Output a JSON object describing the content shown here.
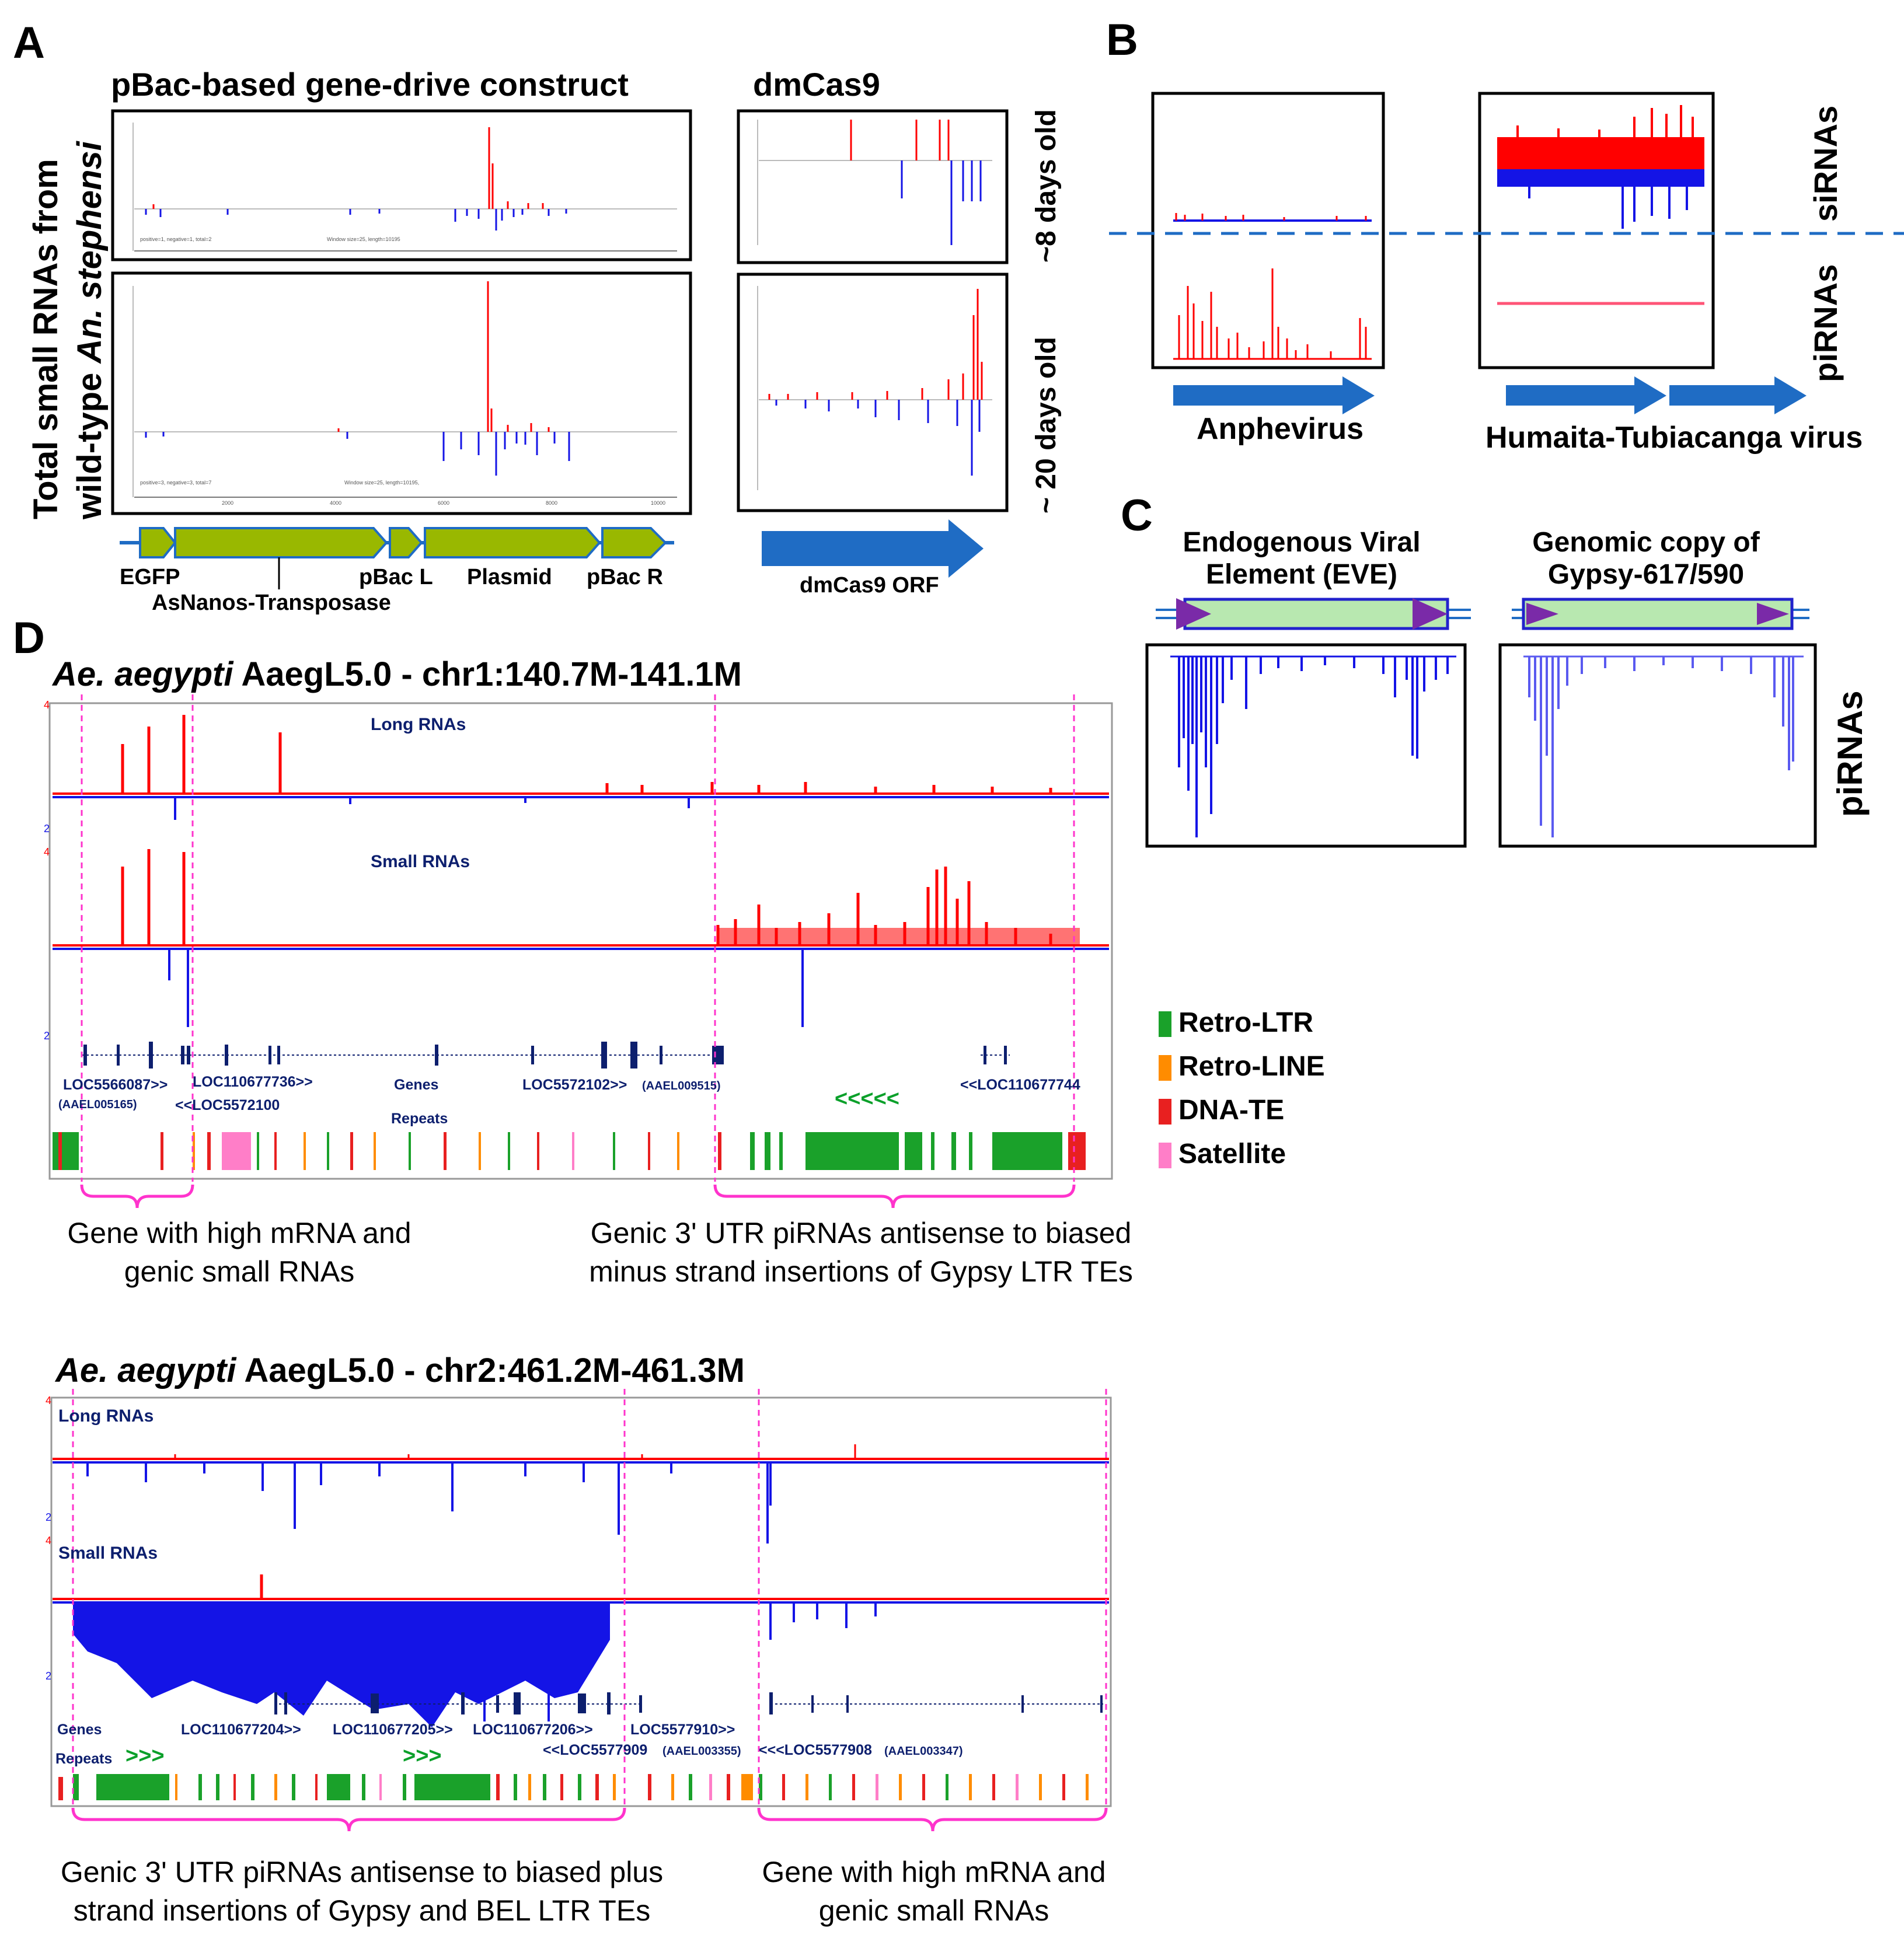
{
  "panels": {
    "A": "A",
    "B": "B",
    "C": "C",
    "D": "D"
  },
  "panelA": {
    "title_construct": "pBac-based gene-drive construct",
    "title_cas9": "dmCas9",
    "ylabel_1": "Total small RNAs from",
    "ylabel_2_plain": "wild-type ",
    "ylabel_2_italic": "An. stephensi",
    "age_8": "~8 days old",
    "age_20": "~ 20 days old",
    "plot1_stats": "positive=1, negative=1, total=2",
    "plot1_window": "Window size=25, length=10195",
    "plot2_stats": "positive=3, negative=3, total=7",
    "plot2_window": "Window size=25, length=10195,",
    "axis_ticks": [
      "2000",
      "4000",
      "6000",
      "8000",
      "10000"
    ],
    "features": [
      "EGFP",
      "AsNanos-Transposase",
      "pBac L",
      "Plasmid",
      "pBac R"
    ],
    "cas9_orf": "dmCas9 ORF"
  },
  "panelB": {
    "siRNAs": "siRNAs",
    "piRNAs": "piRNAs",
    "virus1": "Anphevirus",
    "virus2": "Humaita-Tubiacanga virus"
  },
  "panelC": {
    "eve_1": "Endogenous Viral",
    "eve_2": "Element (EVE)",
    "gypsy_1": "Genomic copy of",
    "gypsy_2": "Gypsy-617/590",
    "piRNAs": "piRNAs"
  },
  "legend": [
    {
      "label": "Retro-LTR",
      "color": "#1aa12a"
    },
    {
      "label": "Retro-LINE",
      "color": "#ff8c00"
    },
    {
      "label": "DNA-TE",
      "color": "#e82020"
    },
    {
      "label": "Satellite",
      "color": "#ff7ec8"
    }
  ],
  "colors": {
    "red": "#ff0000",
    "blue": "#1414e6",
    "navy": "#0d1f6e",
    "olive": "#99b800",
    "arrow": "#1f6cc4",
    "magenta": "#ff33cc",
    "green": "#0aa02a"
  },
  "panelD1": {
    "title_italic": "Ae. aegypti",
    "title_rest": " AaegL5.0 - chr1:140.7M-141.1M",
    "long": "Long RNAs",
    "small": "Small RNAs",
    "genes": "Genes",
    "repeats": "Repeats",
    "scale_top": "4",
    "scale_bot": "2",
    "gene_labels": [
      "LOC5566087>>",
      "(AAEL005165)",
      "LOC110677736>>",
      "<<LOC5572100",
      "LOC5572102>>",
      "(AAEL009515)",
      "<<LOC110677744"
    ],
    "arrows": "<<<<<",
    "note_left_1": "Gene with high mRNA and",
    "note_left_2": "genic small RNAs",
    "note_right_1": "Genic 3' UTR piRNAs antisense to biased",
    "note_right_2": "minus strand insertions of Gypsy LTR TEs"
  },
  "panelD2": {
    "title_italic": "Ae. aegypti",
    "title_rest": " AaegL5.0 - chr2:461.2M-461.3M",
    "long": "Long RNAs",
    "small": "Small RNAs",
    "genes": "Genes",
    "repeats": "Repeats",
    "scale_top": "4",
    "scale_bot": "2",
    "gene_labels": [
      "LOC110677204>>",
      "LOC110677205>>",
      "LOC110677206>>",
      "LOC5577910>>",
      "<<LOC5577909",
      "(AAEL003355)",
      "<<<LOC5577908",
      "(AAEL003347)"
    ],
    "arrows1": ">>>",
    "arrows2": ">>>",
    "note_left_1": "Genic 3' UTR piRNAs antisense to biased plus",
    "note_left_2": "strand insertions of Gypsy and BEL LTR TEs",
    "note_right_1": "Gene with high mRNA and",
    "note_right_2": "genic small RNAs"
  }
}
